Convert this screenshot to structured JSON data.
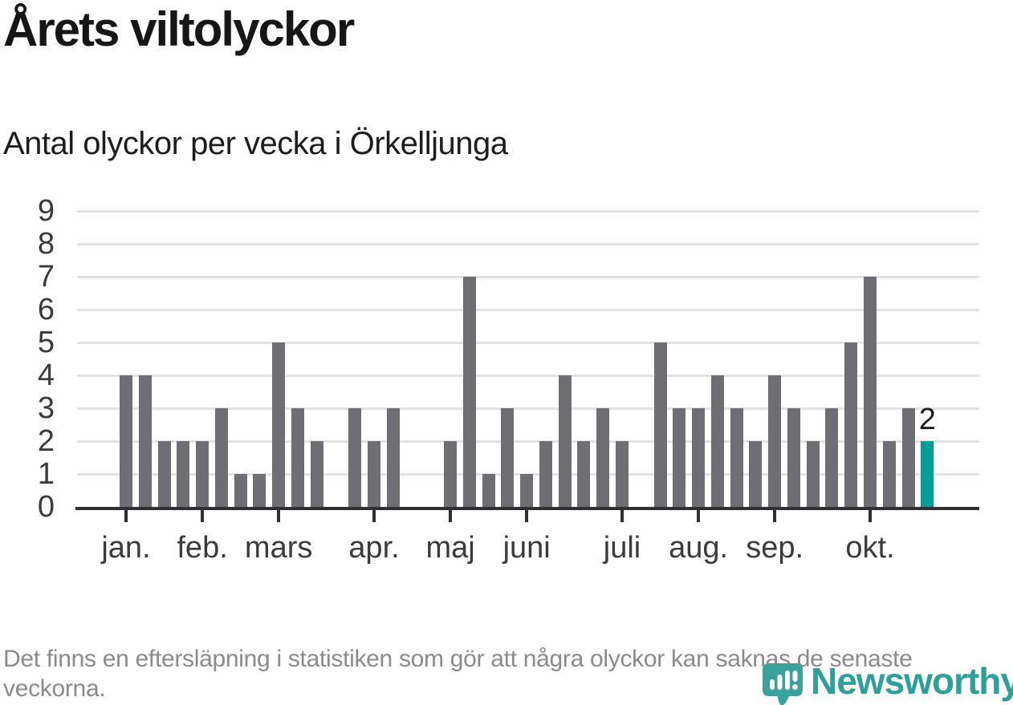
{
  "title": "Årets viltolyckor",
  "subtitle": "Antal olyckor per vecka i Örkelljunga",
  "footer": {
    "note": "Det finns en eftersläpning i statistiken som gör att några olyckor kan saknas de senaste veckorna.",
    "brand": "Newsworthy"
  },
  "colors": {
    "bar": "#6e6e73",
    "highlight": "#009e96",
    "grid": "#e3e3e3",
    "axis": "#303033",
    "tick_label": "#3b3b3b",
    "value_label": "#1f1f1f",
    "footer_text": "#8b8b8b",
    "brand": "#2f9f99"
  },
  "chart_data": {
    "type": "bar",
    "title": "Årets viltolyckor",
    "subtitle": "Antal olyckor per vecka i Örkelljunga",
    "x_unit": "vecka (week of year)",
    "ylabel": "Antal olyckor",
    "ylim": [
      0,
      9
    ],
    "yticks": [
      0,
      1,
      2,
      3,
      4,
      5,
      6,
      7,
      8,
      9
    ],
    "grid": true,
    "legend": false,
    "values": [
      4,
      4,
      2,
      2,
      2,
      3,
      1,
      1,
      5,
      3,
      2,
      0,
      3,
      2,
      3,
      0,
      0,
      2,
      7,
      1,
      3,
      1,
      2,
      4,
      2,
      3,
      2,
      0,
      5,
      3,
      3,
      4,
      3,
      2,
      4,
      3,
      2,
      3,
      5,
      7,
      2,
      3,
      2
    ],
    "x_ticks": [
      {
        "index": 0,
        "label": "jan."
      },
      {
        "index": 4,
        "label": "feb."
      },
      {
        "index": 8,
        "label": "mars"
      },
      {
        "index": 13,
        "label": "apr."
      },
      {
        "index": 17,
        "label": "maj"
      },
      {
        "index": 21,
        "label": "juni"
      },
      {
        "index": 26,
        "label": "juli"
      },
      {
        "index": 30,
        "label": "aug."
      },
      {
        "index": 34,
        "label": "sep."
      },
      {
        "index": 39,
        "label": "okt."
      }
    ],
    "highlight_last": true,
    "last_value_label": "2"
  }
}
